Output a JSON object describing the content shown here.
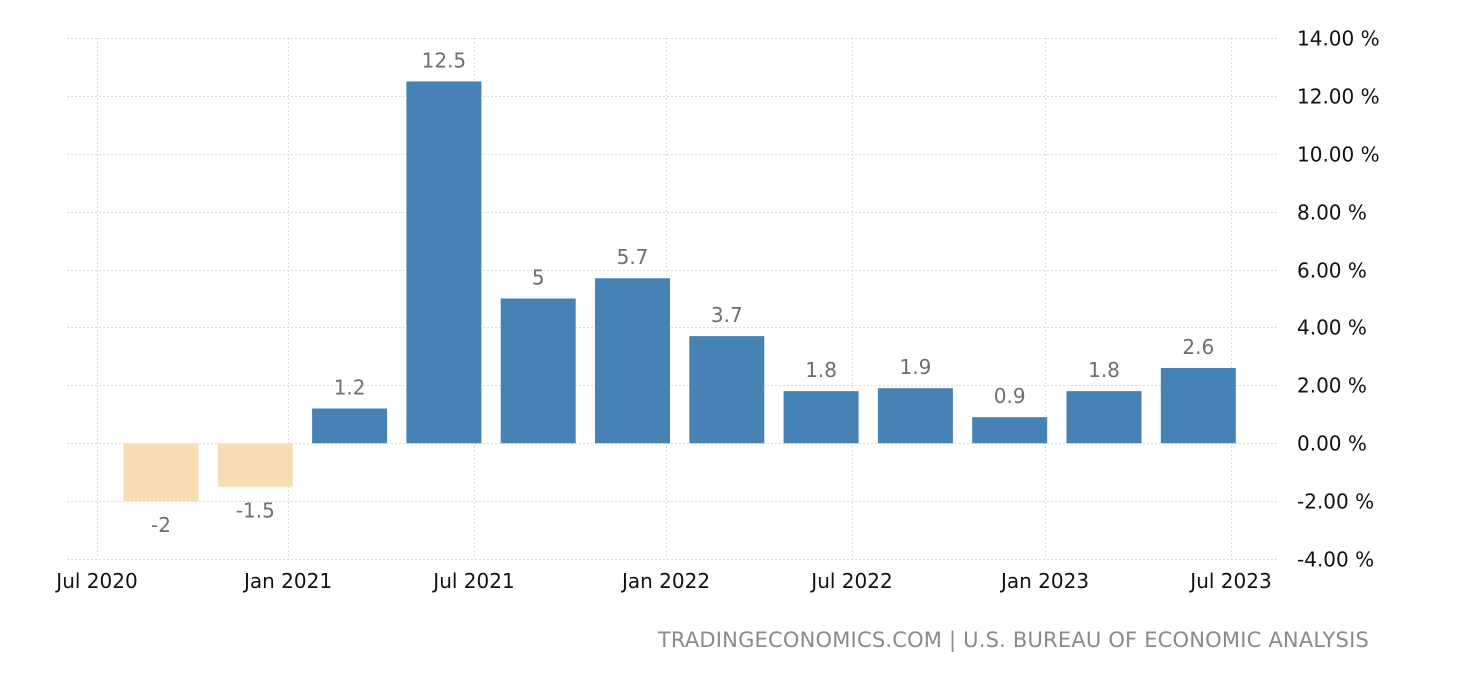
{
  "chart_data": {
    "type": "bar",
    "categories": [
      "2020-Q3",
      "2020-Q4",
      "2021-Q1",
      "2021-Q2",
      "2021-Q3",
      "2021-Q4",
      "2022-Q1",
      "2022-Q2",
      "2022-Q3",
      "2022-Q4",
      "2023-Q1",
      "2023-Q2"
    ],
    "values": [
      -2,
      -1.5,
      1.2,
      12.5,
      5,
      5.7,
      3.7,
      1.8,
      1.9,
      0.9,
      1.8,
      2.6
    ],
    "data_labels": [
      "-2",
      "-1.5",
      "1.2",
      "12.5",
      "5",
      "5.7",
      "3.7",
      "1.8",
      "1.9",
      "0.9",
      "1.8",
      "2.6"
    ],
    "x_tick_labels": [
      "Jul 2020",
      "Jan 2021",
      "Jul 2021",
      "Jan 2022",
      "Jul 2022",
      "Jan 2023",
      "Jul 2023"
    ],
    "y_tick_labels": [
      "14.00 %",
      "12.00 %",
      "10.00 %",
      "8.00 %",
      "6.00 %",
      "4.00 %",
      "2.00 %",
      "0.00 %",
      "-2.00 %",
      "-4.00 %"
    ],
    "y_ticks": [
      14,
      12,
      10,
      8,
      6,
      4,
      2,
      0,
      -2,
      -4
    ],
    "ylim": [
      -4,
      14
    ],
    "y_axis_side": "right",
    "grid": true,
    "colors": {
      "positive": "#4682b4",
      "negative": "#f5deb3"
    },
    "title": "",
    "xlabel": "",
    "ylabel": ""
  },
  "source": "TRADINGECONOMICS.COM | U.S. BUREAU OF ECONOMIC ANALYSIS"
}
